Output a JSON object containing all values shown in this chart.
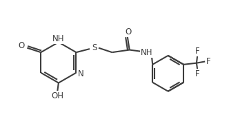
{
  "bg_color": "#ffffff",
  "line_color": "#3d3d3d",
  "line_width": 1.5,
  "font_size": 8.5,
  "figsize": [
    3.61,
    1.92
  ],
  "dpi": 100,
  "xlim": [
    0,
    10
  ],
  "ylim": [
    0,
    5.32
  ]
}
